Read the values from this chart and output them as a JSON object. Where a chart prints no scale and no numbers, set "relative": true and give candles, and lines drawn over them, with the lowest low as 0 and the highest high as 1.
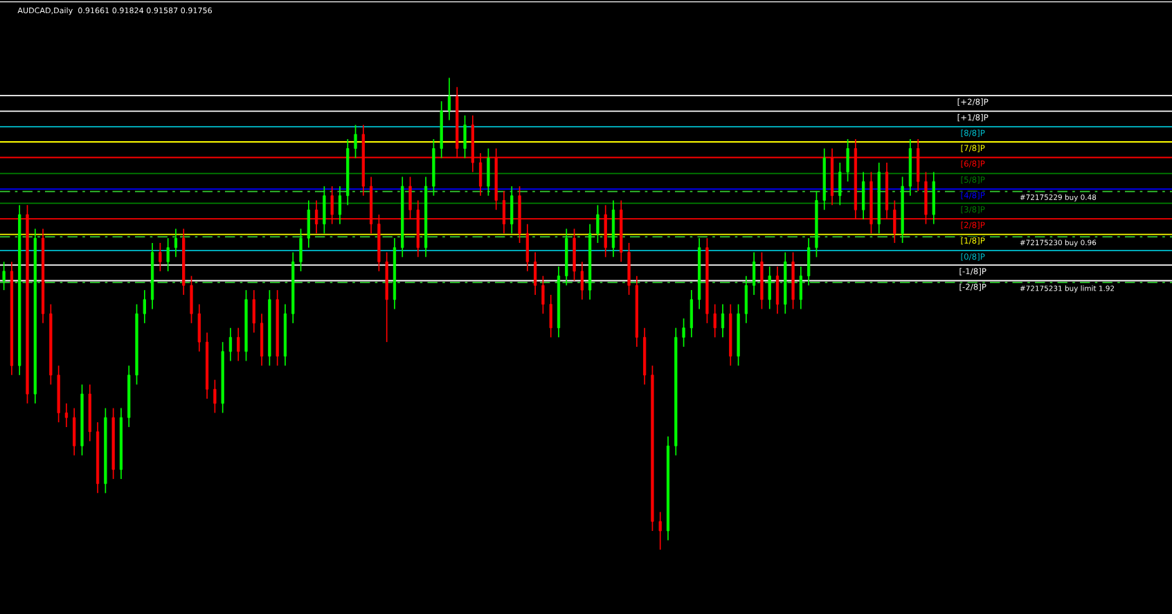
{
  "chart_data": {
    "type": "candlestick",
    "title": "AUDCAD,Daily  0.91661 0.91824 0.91587 0.91756",
    "relative": true,
    "categories": [
      null,
      null,
      null,
      null,
      null,
      null,
      null,
      null,
      null,
      null,
      null,
      null,
      null,
      null,
      null,
      null,
      null,
      null,
      null,
      null,
      null,
      null,
      null,
      null,
      null,
      null,
      null,
      null,
      null,
      null,
      null,
      null,
      null,
      null,
      null,
      null,
      null,
      null,
      null,
      null,
      null,
      null,
      null,
      null,
      null,
      null,
      null,
      null,
      null,
      null,
      null,
      null,
      null,
      null,
      null,
      null,
      null,
      null,
      null,
      null,
      null,
      null,
      null,
      null,
      null,
      null,
      null,
      null,
      null,
      null,
      null,
      null,
      null,
      null,
      null,
      null,
      null,
      null,
      null,
      null,
      null,
      null,
      null,
      null,
      null,
      null,
      null,
      null,
      null,
      null,
      null,
      null,
      null,
      null,
      null,
      null,
      null,
      null,
      null,
      null,
      null,
      null,
      null,
      null,
      null,
      null,
      null,
      null,
      null,
      null,
      null,
      null,
      null,
      null,
      null,
      null,
      null,
      null,
      null,
      null,
      null,
      null,
      null,
      null,
      null,
      null,
      null,
      null,
      null,
      null,
      null,
      null,
      null,
      null,
      null,
      null,
      null,
      null,
      null,
      null,
      null,
      null,
      null,
      null,
      null,
      null,
      null,
      null,
      null,
      null
    ],
    "ohlc": [
      [
        0.57,
        0.61,
        0.55,
        0.59
      ],
      [
        0.59,
        0.61,
        0.37,
        0.39
      ],
      [
        0.39,
        0.73,
        0.37,
        0.71
      ],
      [
        0.71,
        0.73,
        0.31,
        0.33
      ],
      [
        0.33,
        0.68,
        0.31,
        0.66
      ],
      [
        0.66,
        0.68,
        0.48,
        0.5
      ],
      [
        0.5,
        0.52,
        0.35,
        0.37
      ],
      [
        0.37,
        0.39,
        0.27,
        0.29
      ],
      [
        0.29,
        0.31,
        0.26,
        0.28
      ],
      [
        0.28,
        0.3,
        0.2,
        0.22
      ],
      [
        0.22,
        0.35,
        0.2,
        0.33
      ],
      [
        0.33,
        0.35,
        0.23,
        0.25
      ],
      [
        0.25,
        0.27,
        0.12,
        0.14
      ],
      [
        0.14,
        0.3,
        0.12,
        0.28
      ],
      [
        0.28,
        0.3,
        0.15,
        0.17
      ],
      [
        0.17,
        0.3,
        0.15,
        0.28
      ],
      [
        0.28,
        0.39,
        0.26,
        0.37
      ],
      [
        0.37,
        0.52,
        0.35,
        0.5
      ],
      [
        0.5,
        0.55,
        0.48,
        0.53
      ],
      [
        0.53,
        0.65,
        0.51,
        0.63
      ],
      [
        0.63,
        0.65,
        0.59,
        0.61
      ],
      [
        0.61,
        0.66,
        0.59,
        0.64
      ],
      [
        0.64,
        0.68,
        0.62,
        0.66
      ],
      [
        0.66,
        0.68,
        0.54,
        0.56
      ],
      [
        0.56,
        0.58,
        0.48,
        0.5
      ],
      [
        0.5,
        0.52,
        0.42,
        0.44
      ],
      [
        0.44,
        0.46,
        0.32,
        0.34
      ],
      [
        0.34,
        0.36,
        0.29,
        0.31
      ],
      [
        0.31,
        0.44,
        0.29,
        0.42
      ],
      [
        0.42,
        0.47,
        0.4,
        0.45
      ],
      [
        0.45,
        0.47,
        0.4,
        0.42
      ],
      [
        0.42,
        0.55,
        0.4,
        0.53
      ],
      [
        0.53,
        0.55,
        0.46,
        0.48
      ],
      [
        0.48,
        0.5,
        0.39,
        0.41
      ],
      [
        0.41,
        0.55,
        0.39,
        0.53
      ],
      [
        0.53,
        0.55,
        0.39,
        0.41
      ],
      [
        0.41,
        0.52,
        0.39,
        0.5
      ],
      [
        0.5,
        0.63,
        0.48,
        0.61
      ],
      [
        0.61,
        0.68,
        0.59,
        0.66
      ],
      [
        0.66,
        0.74,
        0.64,
        0.72
      ],
      [
        0.72,
        0.74,
        0.67,
        0.69
      ],
      [
        0.69,
        0.77,
        0.67,
        0.75
      ],
      [
        0.75,
        0.77,
        0.69,
        0.71
      ],
      [
        0.71,
        0.77,
        0.69,
        0.75
      ],
      [
        0.75,
        0.87,
        0.73,
        0.85
      ],
      [
        0.85,
        0.9,
        0.83,
        0.88
      ],
      [
        0.88,
        0.9,
        0.75,
        0.77
      ],
      [
        0.77,
        0.79,
        0.67,
        0.69
      ],
      [
        0.69,
        0.71,
        0.59,
        0.61
      ],
      [
        0.61,
        0.63,
        0.44,
        0.53
      ],
      [
        0.53,
        0.66,
        0.51,
        0.64
      ],
      [
        0.64,
        0.79,
        0.62,
        0.77
      ],
      [
        0.77,
        0.79,
        0.7,
        0.72
      ],
      [
        0.72,
        0.74,
        0.62,
        0.64
      ],
      [
        0.64,
        0.79,
        0.62,
        0.77
      ],
      [
        0.77,
        0.87,
        0.75,
        0.85
      ],
      [
        0.85,
        0.95,
        0.83,
        0.93
      ],
      [
        0.93,
        1.0,
        0.91,
        0.96
      ],
      [
        0.96,
        0.98,
        0.83,
        0.85
      ],
      [
        0.85,
        0.92,
        0.83,
        0.9
      ],
      [
        0.9,
        0.92,
        0.8,
        0.82
      ],
      [
        0.82,
        0.84,
        0.75,
        0.77
      ],
      [
        0.77,
        0.85,
        0.75,
        0.83
      ],
      [
        0.83,
        0.85,
        0.72,
        0.74
      ],
      [
        0.74,
        0.76,
        0.67,
        0.69
      ],
      [
        0.69,
        0.77,
        0.67,
        0.75
      ],
      [
        0.75,
        0.77,
        0.65,
        0.67
      ],
      [
        0.67,
        0.69,
        0.59,
        0.61
      ],
      [
        0.61,
        0.63,
        0.54,
        0.56
      ],
      [
        0.56,
        0.58,
        0.5,
        0.52
      ],
      [
        0.52,
        0.54,
        0.45,
        0.47
      ],
      [
        0.47,
        0.6,
        0.45,
        0.58
      ],
      [
        0.58,
        0.68,
        0.56,
        0.66
      ],
      [
        0.66,
        0.68,
        0.57,
        0.59
      ],
      [
        0.59,
        0.61,
        0.53,
        0.55
      ],
      [
        0.55,
        0.69,
        0.53,
        0.67
      ],
      [
        0.67,
        0.73,
        0.65,
        0.71
      ],
      [
        0.71,
        0.73,
        0.62,
        0.64
      ],
      [
        0.64,
        0.74,
        0.62,
        0.72
      ],
      [
        0.72,
        0.74,
        0.61,
        0.63
      ],
      [
        0.63,
        0.65,
        0.54,
        0.56
      ],
      [
        0.56,
        0.58,
        0.43,
        0.45
      ],
      [
        0.45,
        0.47,
        0.35,
        0.37
      ],
      [
        0.37,
        0.39,
        0.04,
        0.06
      ],
      [
        0.06,
        0.08,
        0.0,
        0.04
      ],
      [
        0.04,
        0.24,
        0.02,
        0.22
      ],
      [
        0.22,
        0.47,
        0.2,
        0.45
      ],
      [
        0.45,
        0.49,
        0.43,
        0.47
      ],
      [
        0.47,
        0.55,
        0.45,
        0.53
      ],
      [
        0.53,
        0.66,
        0.51,
        0.64
      ],
      [
        0.64,
        0.66,
        0.48,
        0.5
      ],
      [
        0.5,
        0.52,
        0.45,
        0.47
      ],
      [
        0.47,
        0.52,
        0.45,
        0.5
      ],
      [
        0.5,
        0.52,
        0.39,
        0.41
      ],
      [
        0.41,
        0.52,
        0.39,
        0.5
      ],
      [
        0.5,
        0.58,
        0.48,
        0.56
      ],
      [
        0.56,
        0.63,
        0.54,
        0.61
      ],
      [
        0.61,
        0.63,
        0.51,
        0.53
      ],
      [
        0.53,
        0.6,
        0.51,
        0.58
      ],
      [
        0.58,
        0.6,
        0.5,
        0.52
      ],
      [
        0.52,
        0.63,
        0.5,
        0.61
      ],
      [
        0.61,
        0.63,
        0.51,
        0.53
      ],
      [
        0.53,
        0.6,
        0.51,
        0.58
      ],
      [
        0.58,
        0.66,
        0.56,
        0.64
      ],
      [
        0.64,
        0.76,
        0.62,
        0.74
      ],
      [
        0.74,
        0.85,
        0.72,
        0.83
      ],
      [
        0.83,
        0.85,
        0.73,
        0.75
      ],
      [
        0.75,
        0.82,
        0.73,
        0.8
      ],
      [
        0.8,
        0.87,
        0.78,
        0.85
      ],
      [
        0.85,
        0.87,
        0.7,
        0.72
      ],
      [
        0.72,
        0.8,
        0.7,
        0.78
      ],
      [
        0.78,
        0.8,
        0.67,
        0.69
      ],
      [
        0.69,
        0.82,
        0.67,
        0.8
      ],
      [
        0.8,
        0.82,
        0.7,
        0.72
      ],
      [
        0.72,
        0.74,
        0.65,
        0.67
      ],
      [
        0.67,
        0.79,
        0.65,
        0.77
      ],
      [
        0.77,
        0.87,
        0.75,
        0.85
      ],
      [
        0.85,
        0.87,
        0.76,
        0.78
      ],
      [
        0.78,
        0.8,
        0.69,
        0.71
      ],
      [
        0.71,
        0.8,
        0.69,
        0.78
      ],
      null,
      null,
      null,
      null,
      null,
      null,
      null,
      null,
      null,
      null,
      null,
      null,
      null,
      null,
      null,
      null,
      null,
      null,
      null,
      null,
      null,
      null,
      null,
      null,
      null,
      null,
      null,
      null,
      null,
      null
    ],
    "ref_lines": [
      {
        "axis": "y",
        "value": 0.962,
        "label": "[+2/8]P",
        "color": "#ffffff",
        "line_style": "solid"
      },
      {
        "axis": "y",
        "value": 0.929,
        "label": "[+1/8]P",
        "color": "#ffffff",
        "line_style": "solid"
      },
      {
        "axis": "y",
        "value": 0.896,
        "label": "[8/8]P",
        "color": "#00c0d0",
        "line_style": "solid"
      },
      {
        "axis": "y",
        "value": 0.864,
        "label": "[7/8]P",
        "color": "#ffff00",
        "line_style": "solid"
      },
      {
        "axis": "y",
        "value": 0.831,
        "label": "[6/8]P",
        "color": "#ff0000",
        "line_style": "solid"
      },
      {
        "axis": "y",
        "value": 0.797,
        "label": "[5/8]P",
        "color": "#008000",
        "line_style": "solid"
      },
      {
        "axis": "y",
        "value": 0.764,
        "label": "[4/8]P",
        "color": "#0000ff",
        "line_style": "solid"
      },
      {
        "axis": "y",
        "value": 0.734,
        "label": "[3/8]P",
        "color": "#008000",
        "line_style": "solid"
      },
      {
        "axis": "y",
        "value": 0.701,
        "label": "[2/8]P",
        "color": "#ff0000",
        "line_style": "solid"
      },
      {
        "axis": "y",
        "value": 0.668,
        "label": "[1/8]P",
        "color": "#ffff00",
        "line_style": "solid"
      },
      {
        "axis": "y",
        "value": 0.634,
        "label": "[0/8]P",
        "color": "#00c0d0",
        "line_style": "solid"
      },
      {
        "axis": "y",
        "value": 0.603,
        "label": "[-1/8]P",
        "color": "#ffffff",
        "line_style": "solid"
      },
      {
        "axis": "y",
        "value": 0.57,
        "label": "[-2/8]P",
        "color": "#ffffff",
        "line_style": "solid"
      },
      {
        "axis": "y",
        "value": 0.759,
        "label": "#72175229 buy 0.48",
        "color": "#32cd32",
        "line_style": "dashed"
      },
      {
        "axis": "y",
        "value": 0.663,
        "label": "#72175230 buy 0.96",
        "color": "#32cd32",
        "line_style": "dashed"
      },
      {
        "axis": "y",
        "value": 0.566,
        "label": "#72175231 buy limit 1.92",
        "color": "#32cd32",
        "line_style": "dashed"
      }
    ]
  }
}
